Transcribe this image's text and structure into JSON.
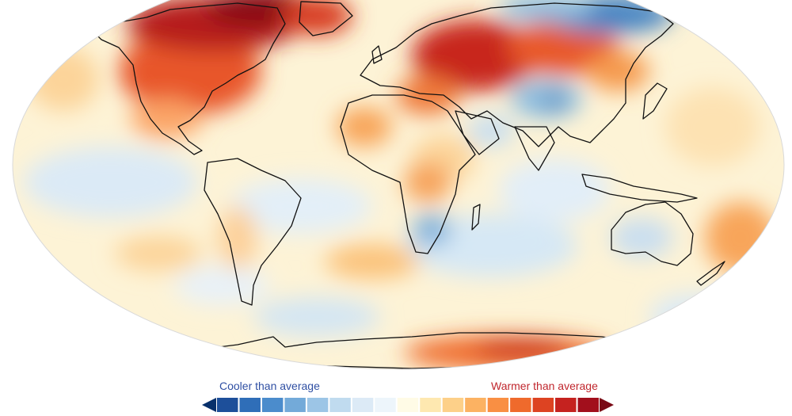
{
  "legend": {
    "cooler_label": "Cooler than average",
    "warmer_label": "Warmer than average",
    "colors": [
      "#08306b",
      "#1d4f9a",
      "#2f6eb8",
      "#4b8ccc",
      "#73aad9",
      "#9cc5e6",
      "#c0dbef",
      "#dceaf6",
      "#edf5fb",
      "#fffbe6",
      "#fee8b0",
      "#fdd089",
      "#fcb262",
      "#f98f43",
      "#ef6a2c",
      "#dd4322",
      "#c5221f",
      "#a20f1c",
      "#7a0a16"
    ]
  },
  "anomaly_colors": {
    "strong_cool": "#2166ac",
    "cool": "#92c5de",
    "neutral": "#fdf5dc",
    "warm": "#fdae61",
    "hot": "#d7301f",
    "very_hot": "#99000d"
  }
}
